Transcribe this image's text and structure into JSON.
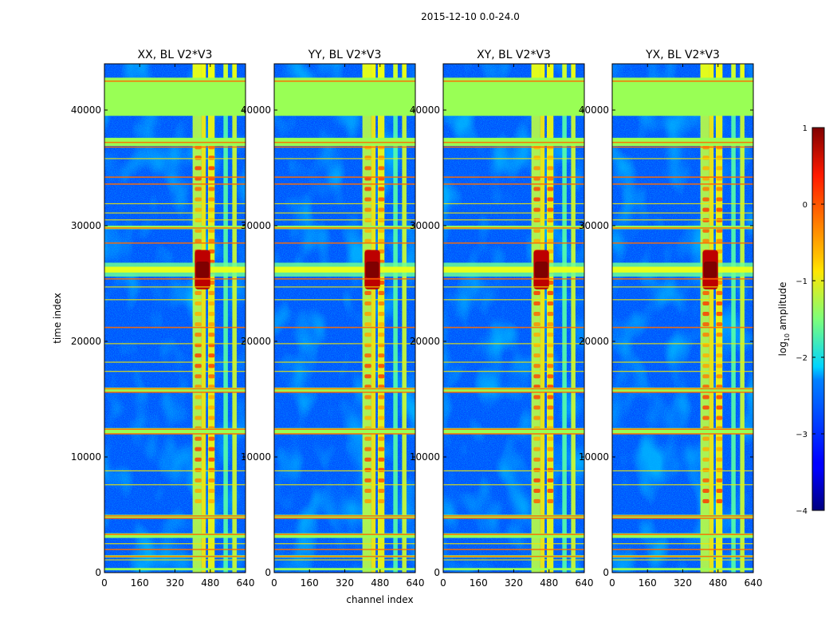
{
  "figure": {
    "suptitle": "2015-12-10 0.0-24.0"
  },
  "colors": {
    "background": "#ffffff",
    "flagged_green": "#99ff55",
    "flag_line_orange": "#ff6a00",
    "flag_line_yellow": "#f2e600"
  },
  "chart_data": [
    {
      "type": "heatmap",
      "title": "XX, BL V2*V3",
      "xlabel": "",
      "ylabel": "time index",
      "xlim": [
        0,
        640
      ],
      "ylim": [
        0,
        44000
      ],
      "xticks": [
        "0",
        "160",
        "320",
        "480",
        "640"
      ],
      "yticks": [
        "0",
        "10000",
        "20000",
        "30000",
        "40000"
      ],
      "background_level": -3.0,
      "peak_time": 26200,
      "peak_channels": [
        410,
        480
      ]
    },
    {
      "type": "heatmap",
      "title": "YY, BL V2*V3",
      "xlabel": "channel index",
      "ylabel": "",
      "xlim": [
        0,
        640
      ],
      "ylim": [
        0,
        44000
      ],
      "xticks": [
        "0",
        "160",
        "320",
        "480",
        "640"
      ],
      "yticks": [
        "0",
        "10000",
        "20000",
        "30000",
        "40000"
      ],
      "background_level": -3.0,
      "peak_time": 26200,
      "peak_channels": [
        410,
        480
      ]
    },
    {
      "type": "heatmap",
      "title": "XY, BL V2*V3",
      "xlabel": "",
      "ylabel": "",
      "xlim": [
        0,
        640
      ],
      "ylim": [
        0,
        44000
      ],
      "xticks": [
        "0",
        "160",
        "320",
        "480",
        "640"
      ],
      "yticks": [
        "0",
        "10000",
        "20000",
        "30000",
        "40000"
      ],
      "background_level": -3.0,
      "peak_time": 26200,
      "peak_channels": [
        410,
        480
      ]
    },
    {
      "type": "heatmap",
      "title": "YX, BL V2*V3",
      "xlabel": "",
      "ylabel": "",
      "xlim": [
        0,
        640
      ],
      "ylim": [
        0,
        44000
      ],
      "xticks": [
        "0",
        "160",
        "320",
        "480",
        "640"
      ],
      "yticks": [
        "0",
        "10000",
        "20000",
        "30000",
        "40000"
      ],
      "background_level": -3.0,
      "peak_time": 26200,
      "peak_channels": [
        410,
        480
      ]
    }
  ],
  "colorbar": {
    "label": "log10 amplitude",
    "label_main": "log",
    "label_sub": "10",
    "label_tail": " amplitude",
    "range": [
      -4,
      1
    ],
    "ticks": [
      "1",
      "0",
      "−1",
      "−2",
      "−3",
      "−4"
    ],
    "tick_values": [
      1,
      0,
      -1,
      -2,
      -3,
      -4
    ]
  },
  "flags": {
    "flagged_blocks": [
      [
        36900,
        37600
      ],
      [
        39500,
        42800
      ],
      [
        29700,
        30000
      ],
      [
        15600,
        16000
      ],
      [
        12000,
        12500
      ],
      [
        4700,
        5000
      ],
      [
        3000,
        3400
      ],
      [
        1300,
        1500
      ],
      [
        200,
        400
      ]
    ],
    "orange_lines": [
      42500,
      37200,
      36800,
      34200,
      33600,
      29800,
      28500,
      25400,
      21200,
      15900,
      15600,
      12400,
      12000,
      4900,
      4700,
      3300,
      2000,
      1400
    ],
    "yellow_lines": [
      35800,
      31900,
      31100,
      30500,
      24700,
      23600,
      19800,
      18200,
      17400,
      8800,
      7600,
      2500,
      1100
    ],
    "bright_channel_bands": [
      [
        400,
        440
      ],
      [
        440,
        460
      ],
      [
        470,
        500
      ],
      [
        540,
        560
      ],
      [
        580,
        600
      ]
    ]
  }
}
